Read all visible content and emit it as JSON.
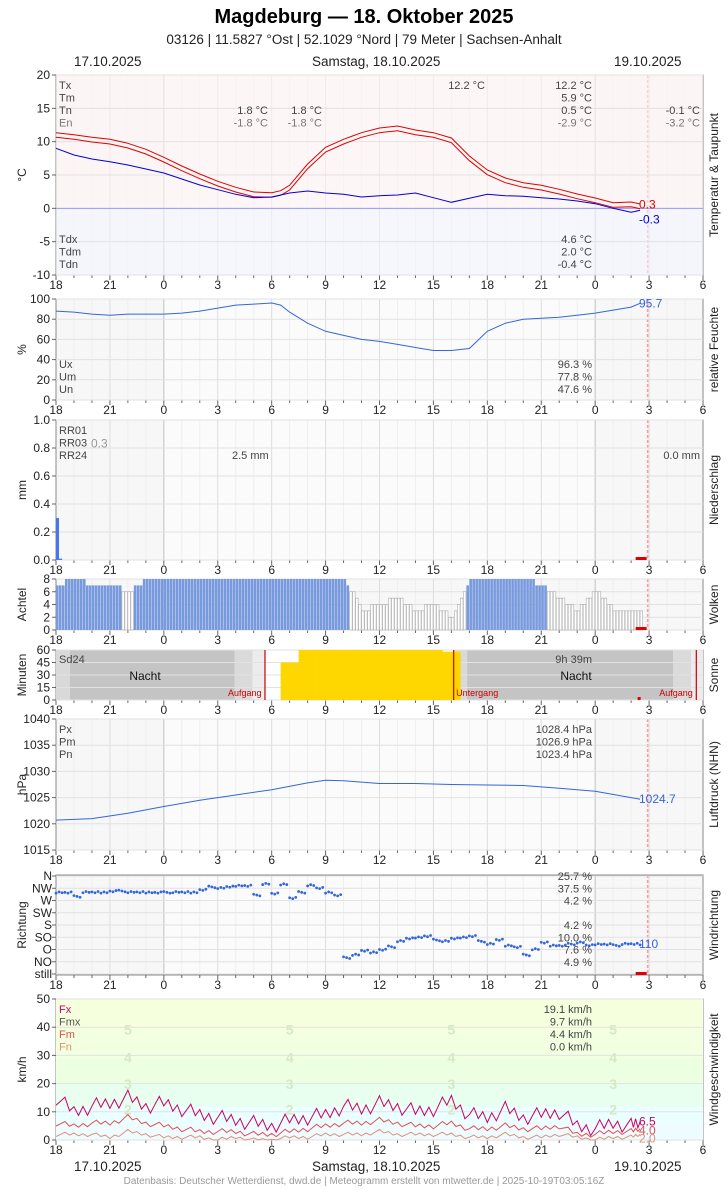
{
  "header": {
    "title": "Magdeburg  —  18. Oktober 2025",
    "subtitle": "03126  |  11.5827 °Ost  |  52.1029 °Nord  |  79 Meter  |  Sachsen-Anhalt",
    "date_left": "17.10.2025",
    "date_center": "Samstag, 18.10.2025",
    "date_right": "19.10.2025"
  },
  "footer": {
    "credit": "Datenbasis: Deutscher Wetterdienst, dwd.de | Meteogramm erstellt von mtwetter.de | 2025-10-19T03:05:16Z"
  },
  "colors": {
    "temperature": "#e00000",
    "dewpoint": "#0000dd",
    "humidity": "#3366dd",
    "precip": "#4477ee",
    "clouds": "#7799dd",
    "sun": "#ffd700",
    "pressure": "#3366dd",
    "wind_dir": "#3366dd",
    "wind_max": "#cc0066",
    "wind_mean": "#e05050",
    "wind_min": "#e0907a",
    "now_line": "#ff9999"
  },
  "chart_data": {
    "type": "line",
    "x_axis": {
      "ticks": [
        "18",
        "21",
        "0",
        "3",
        "6",
        "9",
        "12",
        "15",
        "18",
        "21",
        "0",
        "3",
        "6"
      ],
      "range_hours": [
        0,
        36
      ],
      "note_start": "17.10.2025 18:00"
    },
    "panels": [
      {
        "id": "temperature",
        "ylabel": "°C",
        "side_label": "Temperatur & Taupunkt",
        "ylim": [
          -10,
          20
        ],
        "yticks": [
          -10,
          -5,
          0,
          5,
          10,
          15,
          20
        ],
        "stats": {
          "left_labels": [
            "Tx",
            "Tm",
            "Tn",
            "En"
          ],
          "Tx_day": "12.2 °C",
          "Tx": "12.2 °C",
          "Tm": "5.9 °C",
          "Tn": "0.5 °C",
          "En": "-2.9 °C",
          "Tn_a": "1.8 °C",
          "Tn_b": "1.8 °C",
          "En_a": "-1.8 °C",
          "En_b": "-1.8 °C",
          "Tn_right": "-0.1 °C",
          "En_right": "-3.2 °C",
          "dew_left_labels": [
            "Tdx",
            "Tdm",
            "Tdn"
          ],
          "Tdx": "4.6 °C",
          "Tdm": "2.0 °C",
          "Tdn": "-0.4 °C"
        },
        "last_values": {
          "temperature": "0.3",
          "dewpoint": "-0.3"
        },
        "series": [
          {
            "name": "Temperatur",
            "x": [
              0,
              1,
              2,
              3,
              4,
              5,
              6,
              7,
              8,
              9,
              10,
              11,
              12,
              12.5,
              13,
              14,
              15,
              16,
              16.5,
              17,
              18,
              19,
              20,
              21,
              22,
              23,
              24,
              25,
              26,
              27,
              28,
              29,
              30,
              31,
              32,
              32.5
            ],
            "y": [
              11.0,
              10.7,
              10.3,
              10.0,
              9.4,
              8.5,
              7.3,
              6.0,
              4.8,
              3.7,
              2.8,
              2.1,
              2.0,
              2.3,
              3.1,
              6.3,
              8.8,
              10.0,
              10.5,
              11.0,
              11.7,
              12.0,
              11.4,
              11.0,
              10.2,
              7.5,
              5.4,
              4.2,
              3.5,
              3.1,
              2.5,
              1.8,
              1.2,
              0.5,
              0.6,
              0.3
            ]
          },
          {
            "name": "Taupunkt",
            "x": [
              0,
              1,
              2,
              3,
              4,
              5,
              6,
              7,
              8,
              9,
              10,
              11,
              12,
              13,
              14,
              15,
              16,
              17,
              18,
              19,
              20,
              21,
              22,
              23,
              24,
              25,
              26,
              27,
              28,
              29,
              30,
              31,
              32,
              32.5
            ],
            "y": [
              9.0,
              8.0,
              7.4,
              7.0,
              6.5,
              5.9,
              5.3,
              4.4,
              3.5,
              2.8,
              2.1,
              1.6,
              1.7,
              2.3,
              2.6,
              2.3,
              2.1,
              1.7,
              1.9,
              2.0,
              2.3,
              1.6,
              0.9,
              1.5,
              2.1,
              1.9,
              1.8,
              1.6,
              1.4,
              1.1,
              0.7,
              0.0,
              -0.6,
              -0.3
            ]
          }
        ]
      },
      {
        "id": "humidity",
        "ylabel": "%",
        "side_label": "relative Feuchte",
        "ylim": [
          0,
          100
        ],
        "yticks": [
          0,
          20,
          40,
          60,
          80,
          100
        ],
        "stats": {
          "left_labels": [
            "Ux",
            "Um",
            "Un"
          ],
          "Ux": "96.3 %",
          "Um": "77.8 %",
          "Un": "47.6 %"
        },
        "last_value": "95.7",
        "series": [
          {
            "name": "relative Feuchte",
            "x": [
              0,
              1,
              2,
              3,
              4,
              5,
              6,
              7,
              8,
              9,
              10,
              11,
              12,
              12.5,
              13,
              14,
              15,
              16,
              17,
              18,
              19,
              20,
              21,
              22,
              23,
              24,
              25,
              26,
              27,
              28,
              29,
              30,
              31,
              32,
              32.5
            ],
            "y": [
              88,
              87,
              85,
              84,
              85,
              85,
              85,
              86,
              88,
              91,
              94,
              95,
              96,
              94,
              87,
              76,
              68,
              64,
              60,
              58,
              55,
              52,
              49,
              49,
              51,
              68,
              76,
              80,
              81,
              82,
              84,
              86,
              89,
              92,
              95.7
            ]
          }
        ]
      },
      {
        "id": "precipitation",
        "ylabel": "mm",
        "side_label": "Niederschlag",
        "ylim": [
          0,
          1
        ],
        "yticks": [
          "0.0",
          "0.2",
          "0.4",
          "0.6",
          "0.8",
          "1.0"
        ],
        "stats": {
          "left_labels": [
            "RR01",
            "RR03",
            "RR24"
          ],
          "RR03_value": "0.3",
          "RR24_mid": "2.5 mm",
          "RR24_right": "0.0 mm"
        },
        "bars": {
          "x": [
            0,
            0.17
          ],
          "values": [
            0.3,
            0.01
          ]
        }
      },
      {
        "id": "clouds",
        "ylabel": "Achtel",
        "side_label": "Wolken",
        "ylim": [
          0,
          8
        ],
        "yticks": [
          0,
          2,
          4,
          6,
          8
        ],
        "hours": [
          0,
          1,
          2,
          3,
          4,
          5,
          6,
          7,
          8,
          9,
          10,
          11,
          12,
          13,
          14,
          15,
          16,
          17,
          18,
          19,
          20,
          21,
          22,
          23,
          24,
          25,
          26,
          27,
          28,
          29,
          30,
          31,
          32
        ],
        "octas": [
          7,
          8,
          7,
          7,
          6,
          8,
          8,
          8,
          8,
          8,
          8,
          8,
          8,
          8,
          8,
          8,
          8,
          3,
          4,
          5,
          3,
          4,
          2,
          8,
          8,
          8,
          8,
          7,
          5,
          3,
          6,
          3,
          3
        ]
      },
      {
        "id": "sunshine",
        "ylabel": "Minuten",
        "side_label": "Sonne",
        "ylim": [
          0,
          60
        ],
        "yticks": [
          0,
          15,
          30,
          45,
          60
        ],
        "stats": {
          "left_label": "Sd24",
          "sd24": "9h 39m"
        },
        "labels": {
          "night": "Nacht",
          "sunrise": "Aufgang",
          "sunset": "Untergang"
        },
        "sunrise_hours": [
          11.6,
          35.6
        ],
        "sunset_hours": [
          22.1
        ],
        "sun_minutes": {
          "x": [
            12.5,
            13.5,
            14.5,
            15.5,
            16.5,
            17.5,
            18.5,
            19.5,
            20.5,
            21.5
          ],
          "values": [
            45,
            60,
            60,
            60,
            60,
            60,
            60,
            60,
            60,
            58
          ]
        }
      },
      {
        "id": "pressure",
        "ylabel": "hPa",
        "side_label": "Luftdruck (NHN)",
        "ylim": [
          1015,
          1040
        ],
        "yticks": [
          1015,
          1020,
          1025,
          1030,
          1035,
          1040
        ],
        "stats": {
          "left_labels": [
            "Px",
            "Pm",
            "Pn"
          ],
          "Px": "1028.4 hPa",
          "Pm": "1026.9 hPa",
          "Pn": "1023.4 hPa"
        },
        "last_value": "1024.7",
        "series": [
          {
            "name": "Luftdruck",
            "x": [
              0,
              2,
              4,
              6,
              8,
              10,
              12,
              14,
              15,
              16,
              18,
              20,
              22,
              24,
              26,
              28,
              30,
              32,
              32.5
            ],
            "y": [
              1020.7,
              1021.0,
              1022.0,
              1023.3,
              1024.5,
              1025.5,
              1026.5,
              1027.8,
              1028.3,
              1028.2,
              1027.7,
              1027.7,
              1027.5,
              1027.4,
              1027.3,
              1026.8,
              1026.2,
              1025.0,
              1024.7
            ]
          }
        ]
      },
      {
        "id": "wind_direction",
        "ylabel": "Richtung",
        "side_label": "Windrichtung",
        "categories": [
          "N",
          "NW",
          "W",
          "SW",
          "S",
          "SO",
          "O",
          "NO",
          "still"
        ],
        "stats": {
          "N": "25.7 %",
          "NW": "37.5 %",
          "W": "4.2 %",
          "S": "4.2 %",
          "SO": "10.0 %",
          "O": "7.6 %",
          "NO": "4.9 %"
        },
        "last_value": "110",
        "points_deg": {
          "x": [
            0,
            0.5,
            1,
            1.5,
            2,
            2.5,
            3,
            3.5,
            4,
            4.5,
            5,
            5.5,
            6,
            6.5,
            7,
            7.5,
            8,
            8.5,
            9,
            9.5,
            10,
            10.5,
            11,
            11.5,
            12,
            12.5,
            13,
            13.5,
            14,
            14.5,
            15,
            15.5,
            16,
            16.5,
            17,
            17.5,
            18,
            18.5,
            19,
            19.5,
            20,
            20.5,
            21,
            21.5,
            22,
            22.5,
            23,
            23.5,
            24,
            24.5,
            25,
            25.5,
            26,
            26.5,
            27,
            27.5,
            28,
            28.5,
            29,
            29.5,
            30,
            30.5,
            31,
            31.5,
            32,
            32.5
          ],
          "y": [
            300,
            300,
            285,
            300,
            300,
            300,
            305,
            305,
            300,
            300,
            300,
            300,
            300,
            300,
            300,
            300,
            310,
            320,
            315,
            320,
            325,
            325,
            290,
            330,
            295,
            330,
            280,
            300,
            325,
            315,
            300,
            290,
            60,
            70,
            85,
            80,
            90,
            100,
            120,
            130,
            135,
            140,
            125,
            120,
            130,
            135,
            140,
            120,
            110,
            125,
            105,
            100,
            70,
            90,
            115,
            105,
            105,
            110,
            115,
            105,
            110,
            110,
            105,
            110,
            110,
            110
          ]
        }
      },
      {
        "id": "wind_speed",
        "ylabel": "km/h",
        "side_label": "Windgeschwindigkeit",
        "ylim": [
          0,
          50
        ],
        "yticks": [
          0,
          10,
          20,
          30,
          40,
          50
        ],
        "stats": {
          "left_labels": [
            "Fx",
            "Fmx",
            "Fm",
            "Fn"
          ],
          "Fx": "19.1 km/h",
          "Fmx": "9.7 km/h",
          "Fm": "4.4 km/h",
          "Fn": "0.0 km/h"
        },
        "beaufort_labels": [
          "2",
          "3",
          "4",
          "5",
          "6"
        ],
        "last_values": {
          "max": "6.5",
          "mean": "4.0",
          "min": "2.0"
        },
        "series": [
          {
            "name": "Fx",
            "x": [
              0,
              1,
              2,
              3,
              4,
              5,
              6,
              7,
              8,
              9,
              10,
              11,
              12,
              13,
              14,
              15,
              16,
              17,
              18,
              19,
              20,
              21,
              22,
              23,
              24,
              25,
              26,
              27,
              28,
              29,
              30,
              31,
              32,
              32.5
            ],
            "y": [
              15,
              10,
              12,
              13,
              15,
              12,
              13,
              11,
              9,
              8,
              7,
              6,
              5,
              7,
              8,
              9,
              12,
              11,
              13,
              12,
              10,
              11,
              14,
              9,
              8,
              11,
              8,
              9,
              10,
              5,
              4,
              6,
              5,
              6.5
            ]
          },
          {
            "name": "Fm",
            "x": [
              0,
              1,
              2,
              3,
              4,
              5,
              6,
              7,
              8,
              9,
              10,
              11,
              12,
              13,
              14,
              15,
              16,
              17,
              18,
              19,
              20,
              21,
              22,
              23,
              24,
              25,
              26,
              27,
              28,
              29,
              30,
              31,
              32,
              32.5
            ],
            "y": [
              6,
              5,
              6,
              6,
              8,
              6,
              5,
              4,
              3,
              3,
              3,
              2,
              2,
              3,
              4,
              5,
              6,
              6,
              7,
              6,
              5,
              5,
              6,
              4,
              4,
              5,
              4,
              4,
              5,
              2,
              2,
              3,
              3,
              4.0
            ]
          },
          {
            "name": "Fn",
            "x": [
              0,
              1,
              2,
              3,
              4,
              5,
              6,
              7,
              8,
              9,
              10,
              11,
              12,
              13,
              14,
              15,
              16,
              17,
              18,
              19,
              20,
              21,
              22,
              23,
              24,
              25,
              26,
              27,
              28,
              29,
              30,
              31,
              32,
              32.5
            ],
            "y": [
              2,
              2,
              2,
              1,
              3,
              2,
              1,
              1,
              1,
              0,
              1,
              0,
              0,
              1,
              1,
              2,
              2,
              2,
              3,
              2,
              2,
              2,
              2,
              1,
              1,
              2,
              1,
              1,
              2,
              1,
              0,
              1,
              1,
              2.0
            ]
          }
        ]
      }
    ]
  }
}
